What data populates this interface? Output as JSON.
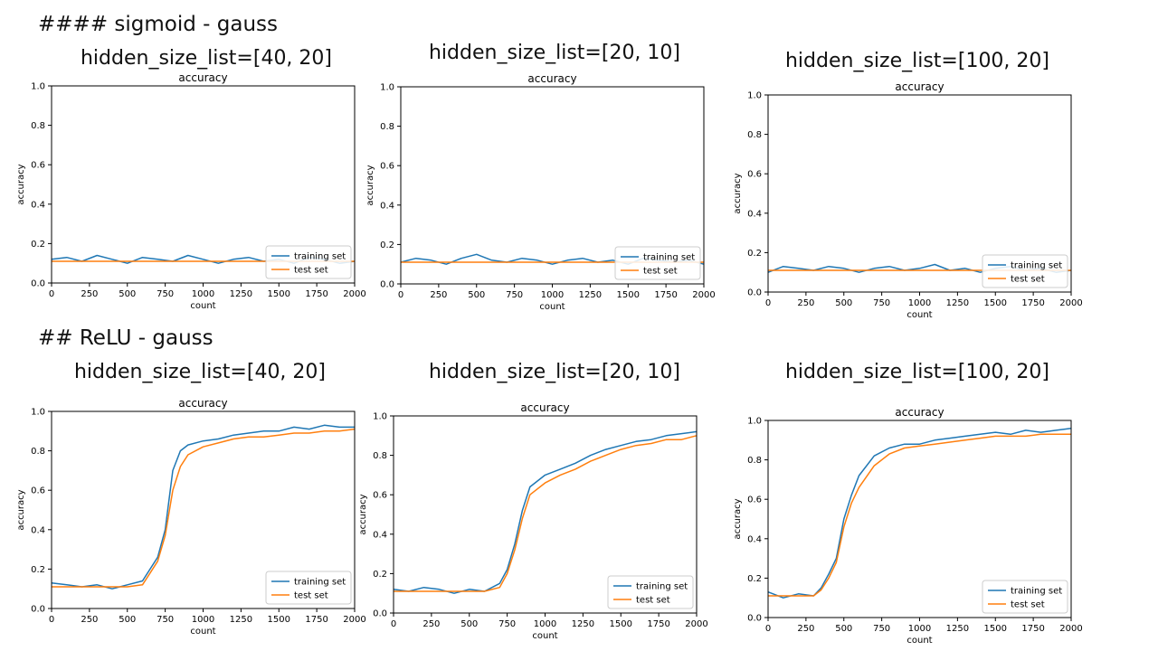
{
  "headings": {
    "sigmoid": "#### sigmoid - gauss",
    "relu": "## ReLU - gauss"
  },
  "titles": {
    "sigmoid": [
      "hidden_size_list=[40, 20]",
      "hidden_size_list=[20, 10]",
      "hidden_size_list=[100, 20]"
    ],
    "relu": [
      "hidden_size_list=[40, 20]",
      "hidden_size_list=[20, 10]",
      "hidden_size_list=[100, 20]"
    ]
  },
  "colors": {
    "training": "#1f77b4",
    "test": "#ff7f0e"
  },
  "chart_data": [
    {
      "type": "line",
      "title": "accuracy",
      "xlabel": "count",
      "ylabel": "accuracy",
      "xlim": [
        0,
        2000
      ],
      "ylim": [
        0,
        1.0
      ],
      "xticks": [
        "0",
        "250",
        "500",
        "750",
        "1000",
        "1250",
        "1500",
        "1750",
        "2000"
      ],
      "yticks": [
        "0.0",
        "0.2",
        "0.4",
        "0.6",
        "0.8",
        "1.0"
      ],
      "legend": "lower-right",
      "grid": false,
      "series": [
        {
          "name": "training set",
          "x": [
            0,
            100,
            200,
            300,
            400,
            500,
            600,
            700,
            800,
            900,
            1000,
            1100,
            1200,
            1300,
            1400,
            1500,
            1600,
            1700,
            1800,
            1900,
            2000
          ],
          "values": [
            0.12,
            0.13,
            0.11,
            0.14,
            0.12,
            0.1,
            0.13,
            0.12,
            0.11,
            0.14,
            0.12,
            0.1,
            0.12,
            0.13,
            0.11,
            0.12,
            0.1,
            0.13,
            0.12,
            0.1,
            0.11
          ]
        },
        {
          "name": "test set",
          "x": [
            0,
            100,
            200,
            300,
            400,
            500,
            600,
            700,
            800,
            900,
            1000,
            1100,
            1200,
            1300,
            1400,
            1500,
            1600,
            1700,
            1800,
            1900,
            2000
          ],
          "values": [
            0.11,
            0.11,
            0.11,
            0.11,
            0.11,
            0.11,
            0.11,
            0.11,
            0.11,
            0.11,
            0.11,
            0.11,
            0.11,
            0.11,
            0.11,
            0.11,
            0.11,
            0.11,
            0.11,
            0.11,
            0.11
          ]
        }
      ]
    },
    {
      "type": "line",
      "title": "accuracy",
      "xlabel": "count",
      "ylabel": "accuracy",
      "xlim": [
        0,
        2000
      ],
      "ylim": [
        0,
        1.0
      ],
      "xticks": [
        "0",
        "250",
        "500",
        "750",
        "1000",
        "1250",
        "1500",
        "1750",
        "2000"
      ],
      "yticks": [
        "0.0",
        "0.2",
        "0.4",
        "0.6",
        "0.8",
        "1.0"
      ],
      "legend": "lower-right",
      "grid": false,
      "series": [
        {
          "name": "training set",
          "x": [
            0,
            100,
            200,
            300,
            400,
            500,
            600,
            700,
            800,
            900,
            1000,
            1100,
            1200,
            1300,
            1400,
            1500,
            1600,
            1700,
            1800,
            1900,
            2000
          ],
          "values": [
            0.11,
            0.13,
            0.12,
            0.1,
            0.13,
            0.15,
            0.12,
            0.11,
            0.13,
            0.12,
            0.1,
            0.12,
            0.13,
            0.11,
            0.12,
            0.1,
            0.13,
            0.12,
            0.11,
            0.12,
            0.1
          ]
        },
        {
          "name": "test set",
          "x": [
            0,
            100,
            200,
            300,
            400,
            500,
            600,
            700,
            800,
            900,
            1000,
            1100,
            1200,
            1300,
            1400,
            1500,
            1600,
            1700,
            1800,
            1900,
            2000
          ],
          "values": [
            0.11,
            0.11,
            0.11,
            0.11,
            0.11,
            0.11,
            0.11,
            0.11,
            0.11,
            0.11,
            0.11,
            0.11,
            0.11,
            0.11,
            0.11,
            0.11,
            0.11,
            0.11,
            0.11,
            0.11,
            0.11
          ]
        }
      ]
    },
    {
      "type": "line",
      "title": "accuracy",
      "xlabel": "count",
      "ylabel": "accuracy",
      "xlim": [
        0,
        2000
      ],
      "ylim": [
        0,
        1.0
      ],
      "xticks": [
        "0",
        "250",
        "500",
        "750",
        "1000",
        "1250",
        "1500",
        "1750",
        "2000"
      ],
      "yticks": [
        "0.0",
        "0.2",
        "0.4",
        "0.6",
        "0.8",
        "1.0"
      ],
      "legend": "lower-right",
      "grid": false,
      "series": [
        {
          "name": "training set",
          "x": [
            0,
            100,
            200,
            300,
            400,
            500,
            600,
            700,
            800,
            900,
            1000,
            1100,
            1200,
            1300,
            1400,
            1500,
            1600,
            1700,
            1800,
            1900,
            2000
          ],
          "values": [
            0.1,
            0.13,
            0.12,
            0.11,
            0.13,
            0.12,
            0.1,
            0.12,
            0.13,
            0.11,
            0.12,
            0.14,
            0.11,
            0.12,
            0.1,
            0.12,
            0.13,
            0.11,
            0.12,
            0.1,
            0.11
          ]
        },
        {
          "name": "test set",
          "x": [
            0,
            100,
            200,
            300,
            400,
            500,
            600,
            700,
            800,
            900,
            1000,
            1100,
            1200,
            1300,
            1400,
            1500,
            1600,
            1700,
            1800,
            1900,
            2000
          ],
          "values": [
            0.11,
            0.11,
            0.11,
            0.11,
            0.11,
            0.11,
            0.11,
            0.11,
            0.11,
            0.11,
            0.11,
            0.11,
            0.11,
            0.11,
            0.11,
            0.11,
            0.11,
            0.11,
            0.11,
            0.11,
            0.11
          ]
        }
      ]
    },
    {
      "type": "line",
      "title": "accuracy",
      "xlabel": "count",
      "ylabel": "accuracy",
      "xlim": [
        0,
        2000
      ],
      "ylim": [
        0,
        1.0
      ],
      "xticks": [
        "0",
        "250",
        "500",
        "750",
        "1000",
        "1250",
        "1500",
        "1750",
        "2000"
      ],
      "yticks": [
        "0.0",
        "0.2",
        "0.4",
        "0.6",
        "0.8",
        "1.0"
      ],
      "legend": "lower-right",
      "grid": false,
      "series": [
        {
          "name": "training set",
          "x": [
            0,
            100,
            200,
            300,
            400,
            500,
            600,
            650,
            700,
            750,
            800,
            850,
            900,
            1000,
            1100,
            1200,
            1300,
            1400,
            1500,
            1600,
            1700,
            1800,
            1900,
            2000
          ],
          "values": [
            0.13,
            0.12,
            0.11,
            0.12,
            0.1,
            0.12,
            0.14,
            0.2,
            0.26,
            0.4,
            0.7,
            0.8,
            0.83,
            0.85,
            0.86,
            0.88,
            0.89,
            0.9,
            0.9,
            0.92,
            0.91,
            0.93,
            0.92,
            0.92
          ]
        },
        {
          "name": "test set",
          "x": [
            0,
            100,
            200,
            300,
            400,
            500,
            600,
            650,
            700,
            750,
            800,
            850,
            900,
            1000,
            1100,
            1200,
            1300,
            1400,
            1500,
            1600,
            1700,
            1800,
            1900,
            2000
          ],
          "values": [
            0.11,
            0.11,
            0.11,
            0.11,
            0.11,
            0.11,
            0.12,
            0.18,
            0.24,
            0.37,
            0.6,
            0.72,
            0.78,
            0.82,
            0.84,
            0.86,
            0.87,
            0.87,
            0.88,
            0.89,
            0.89,
            0.9,
            0.9,
            0.91
          ]
        }
      ]
    },
    {
      "type": "line",
      "title": "accuracy",
      "xlabel": "count",
      "ylabel": "accuracy",
      "xlim": [
        0,
        2000
      ],
      "ylim": [
        0,
        1.0
      ],
      "xticks": [
        "0",
        "250",
        "500",
        "750",
        "1000",
        "1250",
        "1500",
        "1750",
        "2000"
      ],
      "yticks": [
        "0.0",
        "0.2",
        "0.4",
        "0.6",
        "0.8",
        "1.0"
      ],
      "legend": "lower-right",
      "grid": false,
      "series": [
        {
          "name": "training set",
          "x": [
            0,
            100,
            200,
            300,
            400,
            500,
            600,
            700,
            750,
            800,
            850,
            900,
            1000,
            1100,
            1200,
            1300,
            1400,
            1500,
            1600,
            1700,
            1800,
            1900,
            2000
          ],
          "values": [
            0.12,
            0.11,
            0.13,
            0.12,
            0.1,
            0.12,
            0.11,
            0.15,
            0.22,
            0.35,
            0.52,
            0.64,
            0.7,
            0.73,
            0.76,
            0.8,
            0.83,
            0.85,
            0.87,
            0.88,
            0.9,
            0.91,
            0.92
          ]
        },
        {
          "name": "test set",
          "x": [
            0,
            100,
            200,
            300,
            400,
            500,
            600,
            700,
            750,
            800,
            850,
            900,
            1000,
            1100,
            1200,
            1300,
            1400,
            1500,
            1600,
            1700,
            1800,
            1900,
            2000
          ],
          "values": [
            0.11,
            0.11,
            0.11,
            0.11,
            0.11,
            0.11,
            0.11,
            0.13,
            0.2,
            0.32,
            0.48,
            0.6,
            0.66,
            0.7,
            0.73,
            0.77,
            0.8,
            0.83,
            0.85,
            0.86,
            0.88,
            0.88,
            0.9
          ]
        }
      ]
    },
    {
      "type": "line",
      "title": "accuracy",
      "xlabel": "count",
      "ylabel": "accuracy",
      "xlim": [
        0,
        2000
      ],
      "ylim": [
        0,
        1.0
      ],
      "xticks": [
        "0",
        "250",
        "500",
        "750",
        "1000",
        "1250",
        "1500",
        "1750",
        "2000"
      ],
      "yticks": [
        "0.0",
        "0.2",
        "0.4",
        "0.6",
        "0.8",
        "1.0"
      ],
      "legend": "lower-right",
      "grid": false,
      "series": [
        {
          "name": "training set",
          "x": [
            0,
            100,
            200,
            300,
            350,
            400,
            450,
            500,
            550,
            600,
            700,
            800,
            900,
            1000,
            1100,
            1200,
            1300,
            1400,
            1500,
            1600,
            1700,
            1800,
            1900,
            2000
          ],
          "values": [
            0.13,
            0.1,
            0.12,
            0.11,
            0.15,
            0.22,
            0.3,
            0.5,
            0.62,
            0.72,
            0.82,
            0.86,
            0.88,
            0.88,
            0.9,
            0.91,
            0.92,
            0.93,
            0.94,
            0.93,
            0.95,
            0.94,
            0.95,
            0.96
          ]
        },
        {
          "name": "test set",
          "x": [
            0,
            100,
            200,
            300,
            350,
            400,
            450,
            500,
            550,
            600,
            700,
            800,
            900,
            1000,
            1100,
            1200,
            1300,
            1400,
            1500,
            1600,
            1700,
            1800,
            1900,
            2000
          ],
          "values": [
            0.11,
            0.11,
            0.11,
            0.11,
            0.14,
            0.2,
            0.28,
            0.46,
            0.58,
            0.66,
            0.77,
            0.83,
            0.86,
            0.87,
            0.88,
            0.89,
            0.9,
            0.91,
            0.92,
            0.92,
            0.92,
            0.93,
            0.93,
            0.93
          ]
        }
      ]
    }
  ]
}
